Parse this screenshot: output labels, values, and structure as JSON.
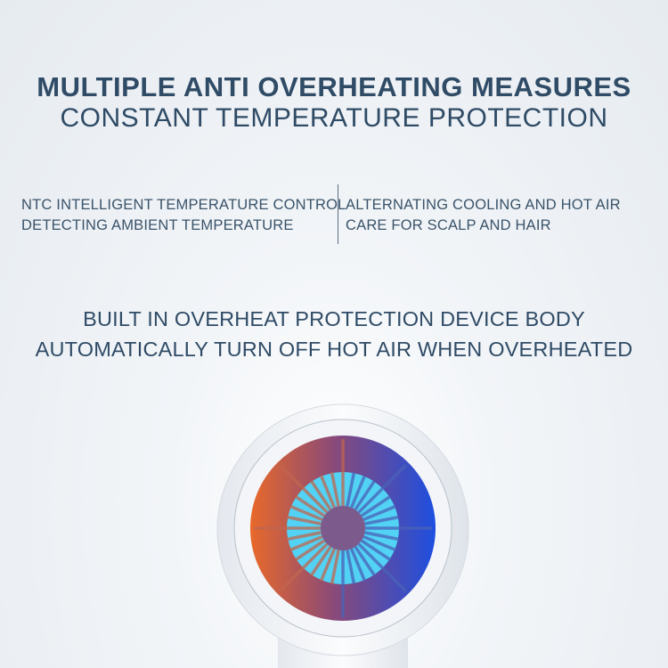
{
  "headline": {
    "title": "MULTIPLE ANTI OVERHEATING MEASURES",
    "subtitle": "CONSTANT TEMPERATURE PROTECTION"
  },
  "features": [
    {
      "line1": "NTC INTELLIGENT TEMPERATURE CONTROL",
      "line2": "DETECTING AMBIENT TEMPERATURE"
    },
    {
      "line1": "ALTERNATING COOLING AND HOT AIR",
      "line2": "CARE FOR SCALP AND HAIR"
    }
  ],
  "protection": {
    "line1": "BUILT IN OVERHEAT PROTECTION DEVICE BODY",
    "line2": "AUTOMATICALLY TURN OFF HOT AIR WHEN OVERHEATED"
  },
  "colors": {
    "text": "#2f4b66",
    "hot": "#e0662a",
    "cold": "#1f4fd8",
    "fan": "#4fd6f2"
  }
}
